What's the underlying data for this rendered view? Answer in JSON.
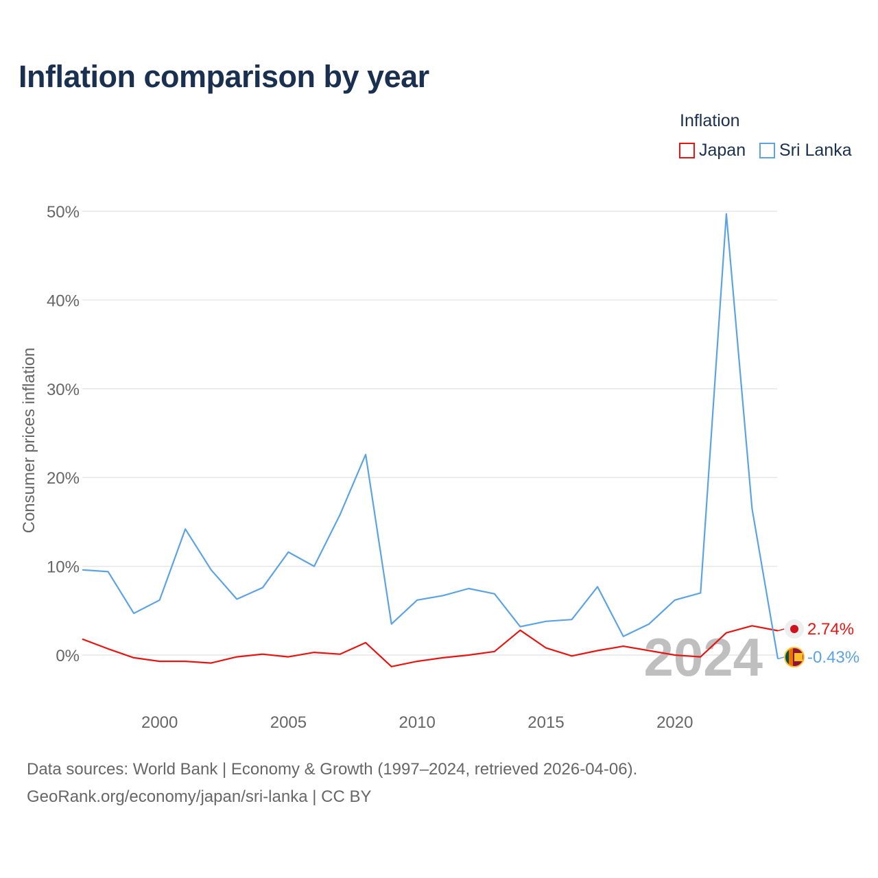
{
  "title": "Inflation comparison by year",
  "legend": {
    "title": "Inflation",
    "items": [
      {
        "name": "Japan",
        "color": "#e8140f"
      },
      {
        "name": "Sri Lanka",
        "color": "#5ba3e4"
      }
    ]
  },
  "source_line1": "Data sources: World Bank | Economy & Growth (1997–2024, retrieved 2026-04-06).",
  "source_line2": "GeoRank.org/economy/japan/sri-lanka | CC BY",
  "chart_data": {
    "type": "line",
    "title": "Inflation comparison by year",
    "xlabel": "",
    "ylabel": "Consumer prices inflation",
    "x": [
      1997,
      1998,
      1999,
      2000,
      2001,
      2002,
      2003,
      2004,
      2005,
      2006,
      2007,
      2008,
      2009,
      2010,
      2011,
      2012,
      2013,
      2014,
      2015,
      2016,
      2017,
      2018,
      2019,
      2020,
      2021,
      2022,
      2023,
      2024
    ],
    "xlim": [
      1997,
      2024
    ],
    "ylim": [
      -5,
      50
    ],
    "x_ticks": [
      2000,
      2005,
      2010,
      2015,
      2020
    ],
    "y_ticks": [
      0,
      10,
      20,
      30,
      40,
      50
    ],
    "y_tick_labels": [
      "0%",
      "10%",
      "20%",
      "30%",
      "40%",
      "50%"
    ],
    "grid": true,
    "legend_position": "top-right",
    "watermark_year": "2024",
    "series": [
      {
        "name": "Japan",
        "color": "#e8140f",
        "values": [
          1.8,
          0.7,
          -0.3,
          -0.7,
          -0.7,
          -0.9,
          -0.2,
          0.1,
          -0.2,
          0.3,
          0.1,
          1.4,
          -1.3,
          -0.7,
          -0.3,
          0.0,
          0.4,
          2.8,
          0.8,
          -0.1,
          0.5,
          1.0,
          0.5,
          0.0,
          -0.2,
          2.5,
          3.3,
          2.74
        ],
        "end_label": "2.74%",
        "flag": "japan-flag-icon"
      },
      {
        "name": "Sri Lanka",
        "color": "#5ba3e4",
        "values": [
          9.6,
          9.4,
          4.7,
          6.2,
          14.2,
          9.6,
          6.3,
          7.6,
          11.6,
          10.0,
          15.8,
          22.6,
          3.5,
          6.2,
          6.7,
          7.5,
          6.9,
          3.2,
          3.8,
          4.0,
          7.7,
          2.1,
          3.5,
          6.2,
          7.0,
          49.7,
          16.5,
          -0.43
        ],
        "end_label": "-0.43%",
        "flag": "sri-lanka-flag-icon"
      }
    ]
  }
}
